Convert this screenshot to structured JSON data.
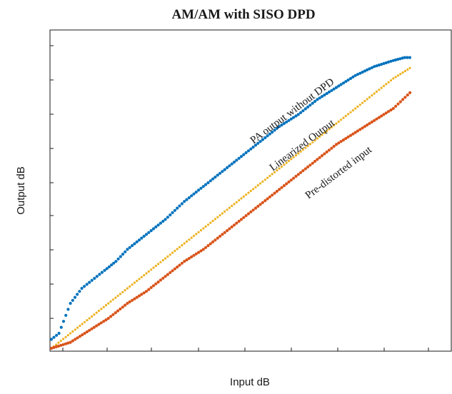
{
  "chart_data": {
    "type": "scatter",
    "title": "AM/AM with SISO DPD",
    "xlabel": "Input dB",
    "ylabel": "Output dB",
    "x_ticks_labeled": false,
    "y_ticks_labeled": false,
    "xlim": [
      0,
      1
    ],
    "ylim": [
      0,
      1
    ],
    "grid": false,
    "legend": "none",
    "series": [
      {
        "name": "PA output without DPD",
        "color": "#0072BD",
        "points": [
          [
            0.0,
            0.03
          ],
          [
            0.02,
            0.05
          ],
          [
            0.05,
            0.15
          ],
          [
            0.08,
            0.2
          ],
          [
            0.1,
            0.22
          ],
          [
            0.14,
            0.26
          ],
          [
            0.17,
            0.29
          ],
          [
            0.2,
            0.33
          ],
          [
            0.25,
            0.38
          ],
          [
            0.3,
            0.43
          ],
          [
            0.35,
            0.49
          ],
          [
            0.4,
            0.54
          ],
          [
            0.45,
            0.59
          ],
          [
            0.5,
            0.64
          ],
          [
            0.55,
            0.69
          ],
          [
            0.6,
            0.74
          ],
          [
            0.65,
            0.78
          ],
          [
            0.7,
            0.83
          ],
          [
            0.75,
            0.87
          ],
          [
            0.8,
            0.91
          ],
          [
            0.85,
            0.94
          ],
          [
            0.9,
            0.96
          ],
          [
            0.93,
            0.97
          ],
          [
            0.95,
            0.97
          ]
        ]
      },
      {
        "name": "Linearized Output",
        "color": "#EDB120",
        "points": [
          [
            0.0,
            0.0
          ],
          [
            0.05,
            0.05
          ],
          [
            0.1,
            0.1
          ],
          [
            0.15,
            0.15
          ],
          [
            0.2,
            0.2
          ],
          [
            0.25,
            0.25
          ],
          [
            0.3,
            0.3
          ],
          [
            0.35,
            0.35
          ],
          [
            0.4,
            0.4
          ],
          [
            0.45,
            0.45
          ],
          [
            0.5,
            0.5
          ],
          [
            0.55,
            0.55
          ],
          [
            0.6,
            0.6
          ],
          [
            0.65,
            0.65
          ],
          [
            0.7,
            0.7
          ],
          [
            0.75,
            0.75
          ],
          [
            0.8,
            0.8
          ],
          [
            0.85,
            0.85
          ],
          [
            0.9,
            0.9
          ],
          [
            0.95,
            0.94
          ]
        ]
      },
      {
        "name": "Pre-distorted input",
        "color": "#D95319",
        "points": [
          [
            0.0,
            0.0
          ],
          [
            0.05,
            0.02
          ],
          [
            0.1,
            0.06
          ],
          [
            0.15,
            0.1
          ],
          [
            0.2,
            0.15
          ],
          [
            0.25,
            0.19
          ],
          [
            0.3,
            0.24
          ],
          [
            0.35,
            0.29
          ],
          [
            0.4,
            0.33
          ],
          [
            0.45,
            0.38
          ],
          [
            0.5,
            0.43
          ],
          [
            0.55,
            0.48
          ],
          [
            0.6,
            0.53
          ],
          [
            0.65,
            0.58
          ],
          [
            0.7,
            0.63
          ],
          [
            0.75,
            0.68
          ],
          [
            0.8,
            0.72
          ],
          [
            0.85,
            0.76
          ],
          [
            0.9,
            0.8
          ],
          [
            0.95,
            0.86
          ]
        ]
      }
    ],
    "annotations": [
      {
        "text": "PA output without DPD",
        "color": "#1a1a1a"
      },
      {
        "text": "Linearized Output",
        "color": "#1a1a1a"
      },
      {
        "text": "Pre-distorted input",
        "color": "#1a1a1a"
      }
    ]
  }
}
